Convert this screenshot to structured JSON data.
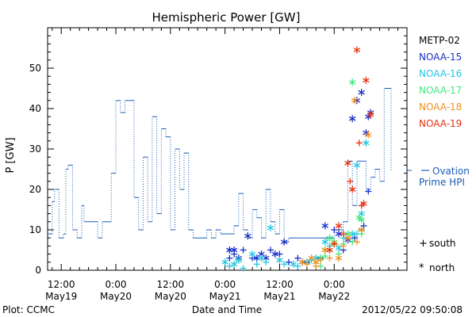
{
  "chart_data": {
    "type": "scatter",
    "title": "Hemispheric Power [GW]",
    "ylabel": "P [GW]",
    "xlabel": "Date and Time",
    "ylim": [
      0,
      60
    ],
    "y_ticks": [
      0,
      10,
      20,
      30,
      40,
      50
    ],
    "x_range_hours": [
      -39,
      40
    ],
    "x_ticks": [
      {
        "hour": -36,
        "label": "12:00",
        "sublabel": "May19"
      },
      {
        "hour": -24,
        "label": "0:00",
        "sublabel": "May20"
      },
      {
        "hour": -12,
        "label": "12:00",
        "sublabel": "May20"
      },
      {
        "hour": 0,
        "label": "0:00",
        "sublabel": "May21"
      },
      {
        "hour": 12,
        "label": "12:00",
        "sublabel": "May21"
      },
      {
        "hour": 24,
        "label": "0:00",
        "sublabel": "May22"
      }
    ],
    "legend": {
      "placement": "right",
      "satellites": [
        {
          "name": "METP-02",
          "color": "#000000"
        },
        {
          "name": "NOAA-15",
          "color": "#1a30c8"
        },
        {
          "name": "NOAA-16",
          "color": "#20c8e0"
        },
        {
          "name": "NOAA-17",
          "color": "#40e880"
        },
        {
          "name": "NOAA-18",
          "color": "#f09020"
        },
        {
          "name": "NOAA-19",
          "color": "#e83010"
        }
      ],
      "symbols": [
        {
          "symbol": "+",
          "label": "south"
        },
        {
          "symbol": "*",
          "label": "north"
        }
      ]
    },
    "ovation_label_line1": "Ovation",
    "ovation_label_line2": "Prime HPI",
    "ovation_color": "#1a5cb8",
    "ovation_steps": [
      [
        -39,
        9
      ],
      [
        -38,
        17
      ],
      [
        -37.5,
        20
      ],
      [
        -37,
        20
      ],
      [
        -36.5,
        8
      ],
      [
        -35.5,
        9
      ],
      [
        -35,
        25
      ],
      [
        -34.5,
        26
      ],
      [
        -33.5,
        10
      ],
      [
        -32.5,
        8
      ],
      [
        -31.5,
        16
      ],
      [
        -31,
        12
      ],
      [
        -28,
        8
      ],
      [
        -27,
        12
      ],
      [
        -25,
        24
      ],
      [
        -24,
        42
      ],
      [
        -23,
        39
      ],
      [
        -22,
        42
      ],
      [
        -20,
        18
      ],
      [
        -19,
        10
      ],
      [
        -18,
        28
      ],
      [
        -17,
        12
      ],
      [
        -16,
        38
      ],
      [
        -15,
        14
      ],
      [
        -14,
        35
      ],
      [
        -13,
        33
      ],
      [
        -12,
        10
      ],
      [
        -11,
        30
      ],
      [
        -10,
        20
      ],
      [
        -9,
        29
      ],
      [
        -8,
        10
      ],
      [
        -7,
        8
      ],
      [
        -4,
        10
      ],
      [
        -3,
        8
      ],
      [
        -2,
        10
      ],
      [
        -1,
        9
      ],
      [
        1,
        9
      ],
      [
        2,
        11
      ],
      [
        3,
        19
      ],
      [
        4,
        10
      ],
      [
        5,
        8
      ],
      [
        6,
        15
      ],
      [
        7,
        13
      ],
      [
        8,
        8
      ],
      [
        9,
        20
      ],
      [
        10,
        12
      ],
      [
        11,
        9
      ],
      [
        12,
        15
      ],
      [
        13,
        7
      ],
      [
        14,
        8
      ],
      [
        23,
        8
      ],
      [
        24,
        10
      ],
      [
        26,
        12
      ],
      [
        27,
        27
      ],
      [
        28,
        16
      ],
      [
        29,
        27
      ],
      [
        31,
        20
      ],
      [
        32,
        23
      ],
      [
        33,
        25
      ],
      [
        34,
        22
      ],
      [
        35,
        45
      ],
      [
        36,
        45
      ]
    ],
    "ovation_end": 36.5,
    "ovation_last_value": 24.6,
    "series": [
      {
        "name": "NOAA-15",
        "north": [
          [
            1,
            5
          ],
          [
            2,
            5
          ],
          [
            3,
            3
          ],
          [
            5,
            8.5
          ],
          [
            7,
            3
          ],
          [
            8,
            4
          ],
          [
            9,
            3
          ],
          [
            11,
            4
          ],
          [
            13,
            7
          ],
          [
            17,
            2
          ],
          [
            22,
            11
          ],
          [
            25,
            9
          ],
          [
            27,
            7.5
          ],
          [
            28,
            37.5
          ],
          [
            29,
            42
          ],
          [
            30,
            44
          ],
          [
            31,
            34
          ],
          [
            31.5,
            38
          ],
          [
            32,
            39
          ]
        ],
        "south": [
          [
            1,
            3
          ],
          [
            2,
            4
          ],
          [
            4,
            5
          ],
          [
            6,
            3
          ],
          [
            10,
            5
          ],
          [
            12,
            4
          ],
          [
            14,
            2
          ],
          [
            16,
            3
          ],
          [
            18,
            2
          ],
          [
            21,
            3
          ],
          [
            24,
            10
          ],
          [
            26,
            5
          ],
          [
            28.5,
            8
          ],
          [
            30.5,
            11
          ],
          [
            31.5,
            19.5
          ]
        ]
      },
      {
        "name": "NOAA-16",
        "north": [
          [
            0,
            2
          ],
          [
            2,
            1.5
          ],
          [
            3,
            2.5
          ],
          [
            6,
            4
          ],
          [
            8,
            3
          ],
          [
            10,
            10.5
          ],
          [
            12,
            2.5
          ],
          [
            15,
            1.5
          ],
          [
            18,
            2
          ],
          [
            20,
            3
          ],
          [
            22,
            7
          ],
          [
            25,
            5.5
          ],
          [
            28,
            9
          ],
          [
            29,
            26
          ],
          [
            30,
            14
          ],
          [
            31,
            31.5
          ]
        ],
        "south": [
          [
            1,
            1
          ],
          [
            4,
            0.5
          ],
          [
            7,
            1.5
          ],
          [
            9,
            2
          ],
          [
            13,
            1.5
          ],
          [
            16,
            1
          ],
          [
            19,
            2.5
          ],
          [
            23,
            6
          ],
          [
            26,
            8
          ],
          [
            29,
            9
          ],
          [
            30,
            10
          ]
        ]
      },
      {
        "name": "NOAA-17",
        "north": [
          [
            20,
            2
          ],
          [
            21,
            3
          ],
          [
            22,
            5
          ],
          [
            23,
            8
          ],
          [
            24,
            7
          ],
          [
            27,
            9
          ],
          [
            28,
            46.5
          ],
          [
            29.5,
            13
          ],
          [
            30,
            12.5
          ]
        ],
        "south": [
          [
            21,
            1
          ],
          [
            22,
            3.5
          ],
          [
            25,
            4
          ],
          [
            26,
            6.5
          ],
          [
            28,
            7
          ],
          [
            30,
            9
          ]
        ]
      },
      {
        "name": "NOAA-18",
        "north": [
          [
            17,
            2
          ],
          [
            19,
            3
          ],
          [
            20,
            2
          ],
          [
            22,
            5
          ],
          [
            24,
            6.5
          ],
          [
            25,
            3
          ],
          [
            27,
            8
          ],
          [
            28.5,
            42
          ],
          [
            30,
            10
          ],
          [
            31.5,
            33.5
          ]
        ],
        "south": [
          [
            18,
            1.5
          ],
          [
            20,
            1
          ],
          [
            21,
            2.5
          ],
          [
            23,
            3
          ],
          [
            26,
            6
          ],
          [
            29,
            7
          ]
        ]
      },
      {
        "name": "NOAA-19",
        "north": [
          [
            23,
            5
          ],
          [
            25,
            11
          ],
          [
            27,
            26.5
          ],
          [
            28,
            20
          ],
          [
            29,
            54.5
          ],
          [
            30.5,
            16.5
          ],
          [
            31,
            47
          ],
          [
            32,
            38.5
          ]
        ],
        "south": [
          [
            24,
            6.5
          ],
          [
            26,
            9
          ],
          [
            27.5,
            22
          ],
          [
            29.5,
            31.5
          ],
          [
            30,
            16
          ]
        ]
      }
    ]
  },
  "footer": {
    "left": "Plot: CCMC",
    "timestamp": "2012/05/22 09:50:08"
  }
}
